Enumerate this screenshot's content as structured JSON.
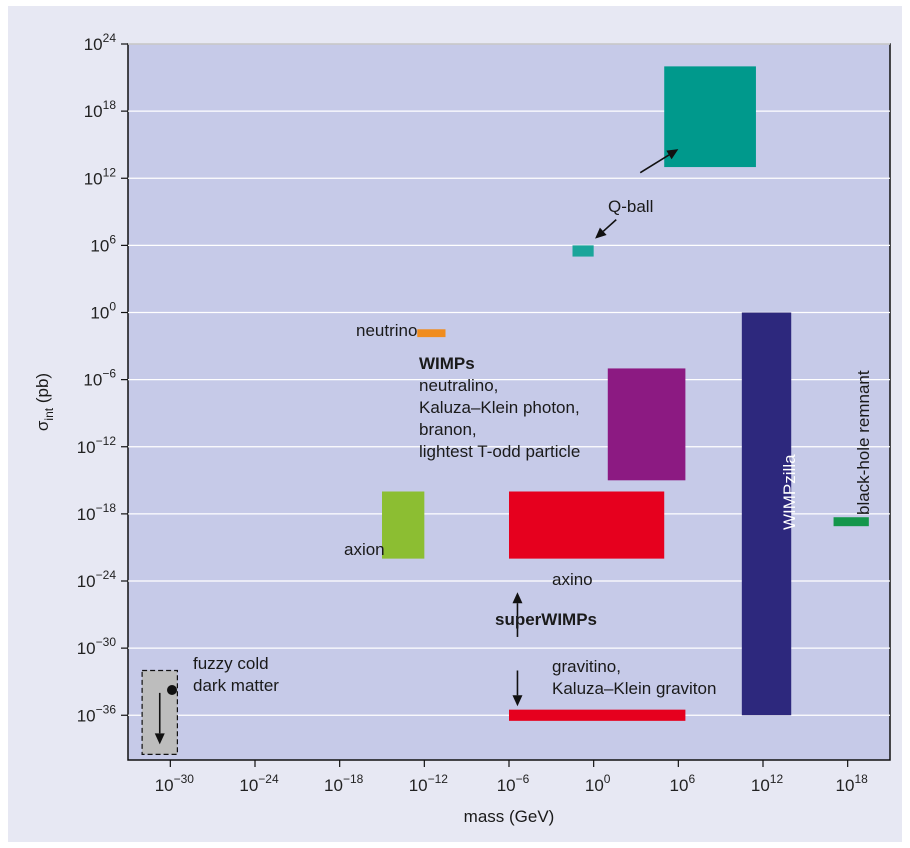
{
  "chart_data": {
    "type": "range-box",
    "xlabel": "mass (GeV)",
    "ylabel": {
      "base": "σ",
      "subscript": "int",
      "unit": "(pb)"
    },
    "x_scale": "log10",
    "y_scale": "log10",
    "xlim_exp": [
      -33,
      21
    ],
    "ylim_exp": [
      -40,
      24
    ],
    "x_ticks": [
      {
        "base": "10",
        "exp": "−30",
        "value": -30
      },
      {
        "base": "10",
        "exp": "−24",
        "value": -24
      },
      {
        "base": "10",
        "exp": "−18",
        "value": -18
      },
      {
        "base": "10",
        "exp": "−12",
        "value": -12
      },
      {
        "base": "10",
        "exp": "−6",
        "value": -6
      },
      {
        "base": "10",
        "exp": "0",
        "value": 0
      },
      {
        "base": "10",
        "exp": "6",
        "value": 6
      },
      {
        "base": "10",
        "exp": "12",
        "value": 12
      },
      {
        "base": "10",
        "exp": "18",
        "value": 18
      }
    ],
    "y_ticks": [
      {
        "base": "10",
        "exp": "24",
        "value": 24
      },
      {
        "base": "10",
        "exp": "18",
        "value": 18
      },
      {
        "base": "10",
        "exp": "12",
        "value": 12
      },
      {
        "base": "10",
        "exp": "6",
        "value": 6
      },
      {
        "base": "10",
        "exp": "0",
        "value": 0
      },
      {
        "base": "10",
        "exp": "−6",
        "value": -6
      },
      {
        "base": "10",
        "exp": "−12",
        "value": -12
      },
      {
        "base": "10",
        "exp": "−18",
        "value": -18
      },
      {
        "base": "10",
        "exp": "−24",
        "value": -24
      },
      {
        "base": "10",
        "exp": "−30",
        "value": -30
      },
      {
        "base": "10",
        "exp": "−36",
        "value": -36
      }
    ],
    "grid": "horizontal",
    "regions": [
      {
        "id": "q-ball-large",
        "x": [
          5,
          11.5
        ],
        "y": [
          13,
          22
        ],
        "color": "#00998c"
      },
      {
        "id": "q-ball-small",
        "x": [
          -1.5,
          0
        ],
        "y": [
          5,
          6
        ],
        "color": "#1aa59a"
      },
      {
        "id": "neutrino",
        "x": [
          -12.5,
          -10.5
        ],
        "y": [
          -1.5,
          -2.2
        ],
        "color": "#f08c1e"
      },
      {
        "id": "wimps",
        "x": [
          1,
          6.5
        ],
        "y": [
          -15,
          -5
        ],
        "color": "#8c1a82"
      },
      {
        "id": "axion",
        "x": [
          -15,
          -12
        ],
        "y": [
          -22,
          -16
        ],
        "color": "#8cbe32"
      },
      {
        "id": "axino",
        "x": [
          -6,
          5
        ],
        "y": [
          -22,
          -16
        ],
        "color": "#e6001e"
      },
      {
        "id": "gravitino",
        "x": [
          -6,
          6.5
        ],
        "y": [
          -35.5,
          -36.5
        ],
        "color": "#e6001e"
      },
      {
        "id": "wimpzilla",
        "x": [
          10.5,
          14
        ],
        "y": [
          -36,
          0
        ],
        "color": "#2d287d"
      },
      {
        "id": "black-hole-remnant",
        "x": [
          17,
          19.5
        ],
        "y": [
          -18.3,
          -19.1
        ],
        "color": "#14964b"
      },
      {
        "id": "fuzzy-cold-dark-matter",
        "x": [
          -32,
          -29.5
        ],
        "y": [
          -32,
          -39.5
        ],
        "color": "#bdbdbd",
        "dashed": true
      }
    ],
    "annotations": {
      "q_ball": "Q-ball",
      "neutrino": "neutrino",
      "wimps_title": "WIMPs",
      "wimps_lines": [
        "neutralino,",
        "Kaluza–Klein photon,",
        "branon,",
        "lightest T-odd particle"
      ],
      "axion": "axion",
      "axino": "axino",
      "superwimps": "superWIMPs",
      "gravitino_lines": [
        "gravitino,",
        "Kaluza–Klein graviton"
      ],
      "fuzzy_lines": [
        "fuzzy cold",
        "dark matter"
      ],
      "wimpzilla": "WIMPzilla",
      "black_hole": "black-hole remnant"
    },
    "arrows": [
      {
        "id": "q-ball-up",
        "from": [
          3.3,
          12.5
        ],
        "to": [
          6.0,
          14.6
        ]
      },
      {
        "id": "q-ball-down",
        "from": [
          1.6,
          8.3
        ],
        "to": [
          0.1,
          6.6
        ]
      },
      {
        "id": "superwimps-up",
        "from": [
          -5.4,
          -29
        ],
        "to": [
          -5.4,
          -25
        ]
      },
      {
        "id": "superwimps-down",
        "from": [
          -5.4,
          -32
        ],
        "to": [
          -5.4,
          -35.2
        ]
      },
      {
        "id": "fuzzy-down",
        "from": [
          -30.75,
          -34
        ],
        "to": [
          -30.75,
          -38.6
        ]
      }
    ]
  }
}
